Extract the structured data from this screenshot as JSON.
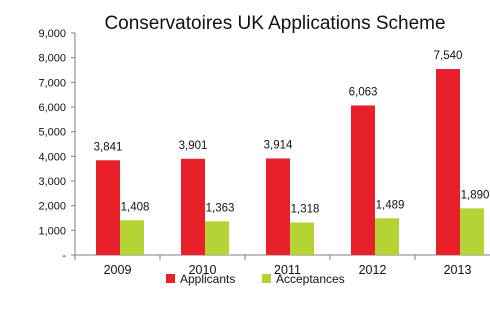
{
  "chart_data": {
    "type": "bar",
    "title": "Conservatoires UK Applications Scheme",
    "xlabel": "",
    "ylabel": "",
    "categories": [
      "2009",
      "2010",
      "2011",
      "2012",
      "2013"
    ],
    "series": [
      {
        "name": "Applicants",
        "color": "#e8202a",
        "values": [
          3841,
          3901,
          3914,
          6063,
          7540
        ],
        "labels": [
          "3,841",
          "3,901",
          "3,914",
          "6,063",
          "7,540"
        ]
      },
      {
        "name": "Acceptances",
        "color": "#b5d334",
        "values": [
          1408,
          1363,
          1318,
          1489,
          1890
        ],
        "labels": [
          "1,408",
          "1,363",
          "1,318",
          "1,489",
          "1,890"
        ]
      }
    ],
    "ylim": [
      0,
      9000
    ],
    "yticks": [
      0,
      1000,
      2000,
      3000,
      4000,
      5000,
      6000,
      7000,
      8000,
      9000
    ],
    "ytick_labels": [
      "-",
      "1,000",
      "2,000",
      "3,000",
      "4,000",
      "5,000",
      "6,000",
      "7,000",
      "8,000",
      "9,000"
    ],
    "grid": false,
    "legend_position": "bottom"
  }
}
